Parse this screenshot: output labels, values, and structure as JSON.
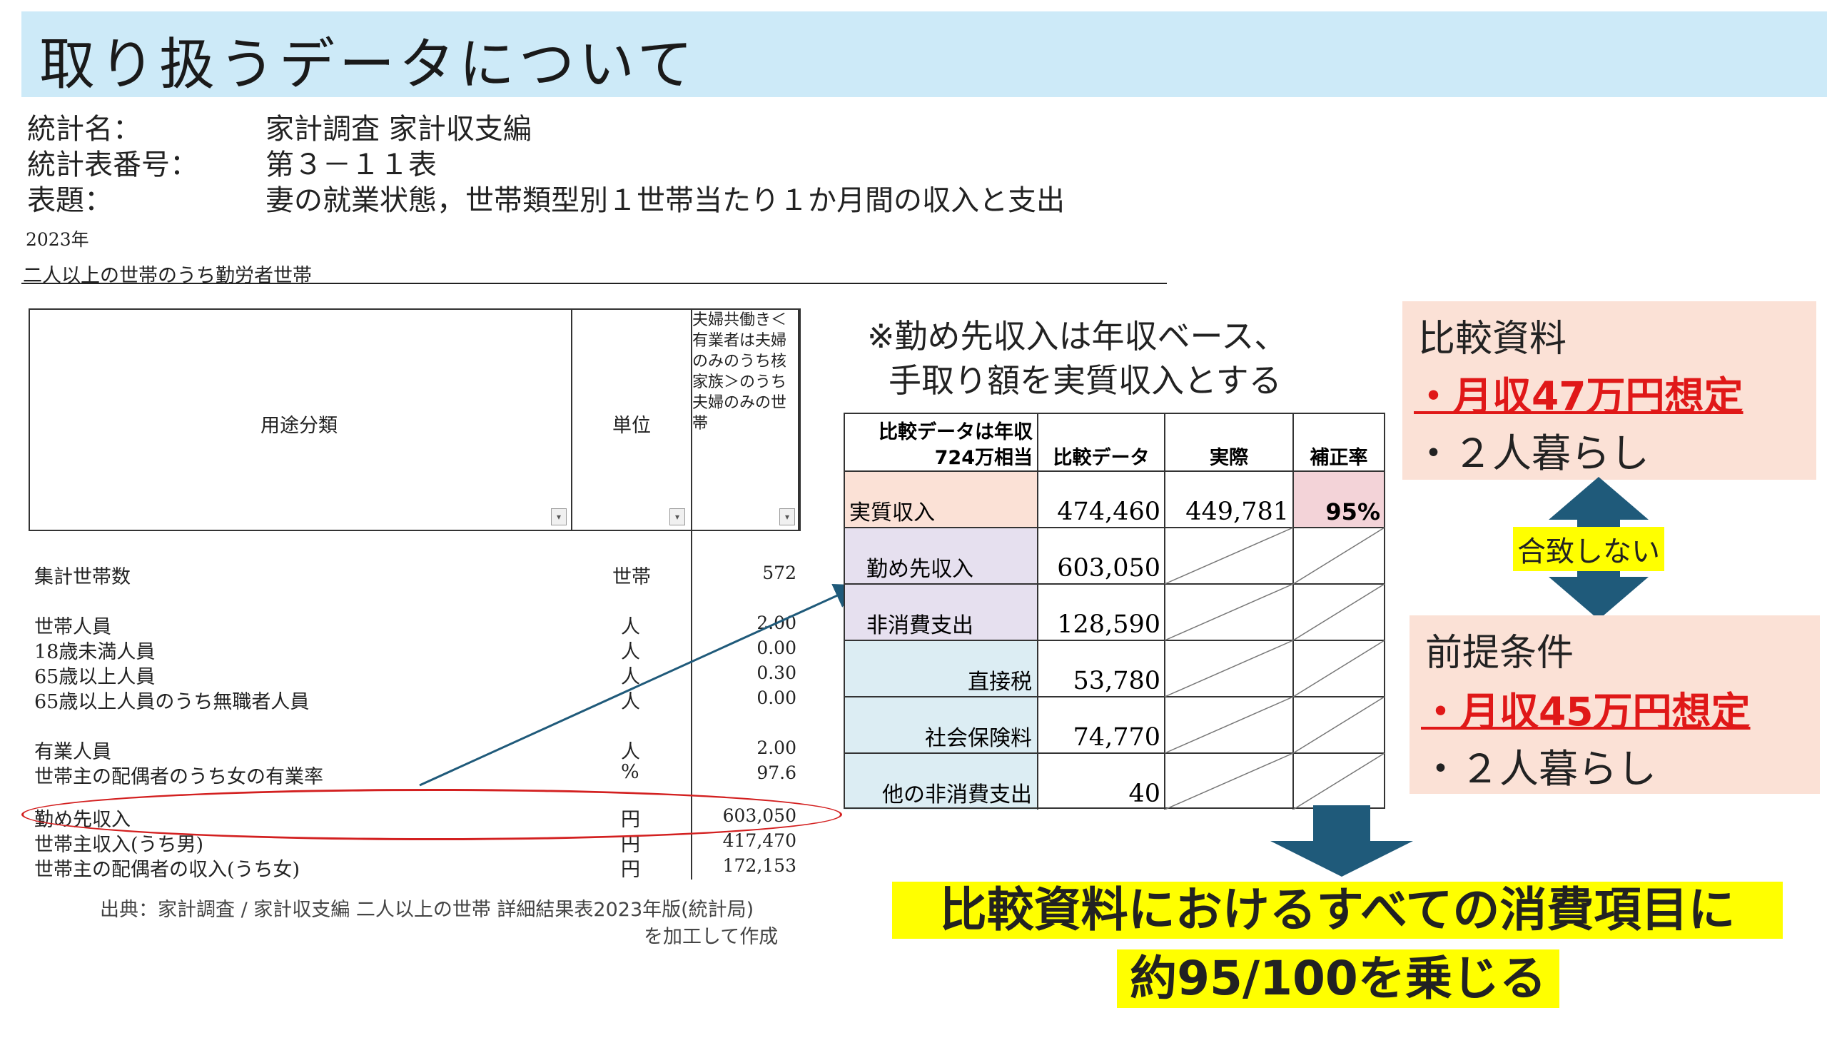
{
  "title": "取り扱うデータについて",
  "meta": [
    {
      "label": "統計名：",
      "value": "家計調査 家計収支編"
    },
    {
      "label": "統計表番号：",
      "value": "第３－１１表"
    },
    {
      "label": "表題：",
      "value": "妻の就業状態，世帯類型別１世帯当たり１か月間の収入と支出"
    }
  ],
  "year": "2023年",
  "subject": "二人以上の世帯のうち勤労者世帯",
  "table_header": {
    "category": "用途分類",
    "unit": "単位",
    "column_desc": "夫婦共働き＜有業者は夫婦のみのうち核家族＞のうち夫婦のみの世帯"
  },
  "rows": [
    {
      "label": "集計世帯数",
      "unit": "世帯",
      "value": "572"
    },
    {
      "label": "世帯人員",
      "unit": "人",
      "value": "2.00"
    },
    {
      "label": "18歳未満人員",
      "unit": "人",
      "value": "0.00"
    },
    {
      "label": "65歳以上人員",
      "unit": "人",
      "value": "0.30"
    },
    {
      "label": "65歳以上人員のうち無職者人員",
      "unit": "人",
      "value": "0.00"
    },
    {
      "label": "有業人員",
      "unit": "人",
      "value": "2.00"
    },
    {
      "label": "世帯主の配偶者のうち女の有業率",
      "unit": "%",
      "value": "97.6"
    },
    {
      "label": "勤め先収入",
      "unit": "円",
      "value": "603,050"
    },
    {
      "label": "世帯主収入(うち男)",
      "unit": "円",
      "value": "417,470"
    },
    {
      "label": "世帯主の配偶者の収入(うち女)",
      "unit": "円",
      "value": "172,153"
    }
  ],
  "source": {
    "line1": "出典：家計調査 / 家計収支編 二人以上の世帯 詳細結果表2023年版(統計局)",
    "line2": "を加工して作成"
  },
  "note": {
    "line1": "※勤め先収入は年収ベース、",
    "line2": "手取り額を実質収入とする"
  },
  "comparison": {
    "header": {
      "label_line1": "比較データは年収",
      "label_line2": "724万相当",
      "col1": "比較データ",
      "col2": "実際",
      "col3": "補正率"
    },
    "rows": [
      {
        "label": "実質収入",
        "value": "474,460",
        "actual": "449,781",
        "rate": "95%"
      },
      {
        "label": "勤め先収入",
        "value": "603,050"
      },
      {
        "label": "非消費支出",
        "value": "128,590"
      },
      {
        "label": "直接税",
        "value": "53,780"
      },
      {
        "label": "社会保険料",
        "value": "74,770"
      },
      {
        "label": "他の非消費支出",
        "value": "40"
      }
    ]
  },
  "box1": {
    "title": "比較資料",
    "line1": "・月収47万円想定",
    "line2": "・２人暮らし"
  },
  "mismatch": "合致しない",
  "box2": {
    "title": "前提条件",
    "line1": "・月収45万円想定",
    "line2": "・２人暮らし"
  },
  "conclusion": {
    "line1": "比較資料におけるすべての消費項目に",
    "line2": "約95/100を乗じる"
  },
  "colors": {
    "title_bg": "#cdeaf8",
    "peach": "#fbe1d6",
    "lavender": "#e6e0ef",
    "lightblue": "#dcedf3",
    "pink": "#f3d3d8",
    "arrow": "#1f5a7a",
    "red": "#e01818",
    "highlight": "#ffff00"
  }
}
